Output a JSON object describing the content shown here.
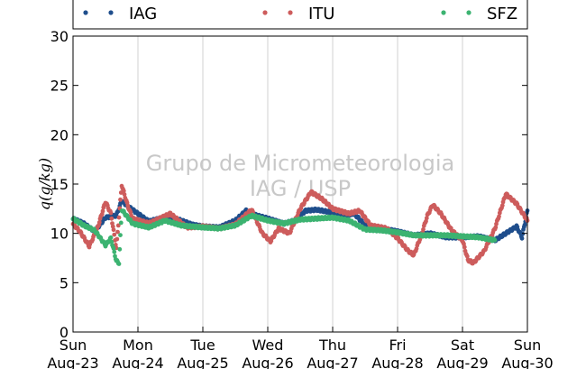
{
  "chart_data": {
    "type": "scatter",
    "title": "",
    "xlabel": "",
    "ylabel": "q(g/kg)",
    "ylim": [
      0,
      30
    ],
    "yticks": [
      0,
      5,
      10,
      15,
      20,
      25,
      30
    ],
    "xlim": [
      "2015-08-23 00:00",
      "2015-08-30 00:00"
    ],
    "xticks": [
      {
        "day": "Sun",
        "date": "Aug-23"
      },
      {
        "day": "Mon",
        "date": "Aug-24"
      },
      {
        "day": "Tue",
        "date": "Aug-25"
      },
      {
        "day": "Wed",
        "date": "Aug-26"
      },
      {
        "day": "Thu",
        "date": "Aug-27"
      },
      {
        "day": "Fri",
        "date": "Aug-28"
      },
      {
        "day": "Sat",
        "date": "Aug-29"
      },
      {
        "day": "Sun",
        "date": "Aug-30"
      }
    ],
    "grid": "vertical",
    "legend": "top",
    "watermark": [
      "Grupo de Micrometeorologia",
      "IAG / USP"
    ],
    "series": [
      {
        "name": "IAG",
        "color": "#1f4e8c",
        "points": [
          [
            "2015-08-23 00:00",
            11.5
          ],
          [
            "2015-08-23 04:00",
            11.0
          ],
          [
            "2015-08-23 08:00",
            10.2
          ],
          [
            "2015-08-23 12:00",
            11.6
          ],
          [
            "2015-08-23 16:00",
            11.8
          ],
          [
            "2015-08-23 18:00",
            13.3
          ],
          [
            "2015-08-23 20:00",
            12.8
          ],
          [
            "2015-08-24 00:00",
            12.0
          ],
          [
            "2015-08-24 04:00",
            11.2
          ],
          [
            "2015-08-24 08:00",
            11.5
          ],
          [
            "2015-08-24 12:00",
            11.6
          ],
          [
            "2015-08-24 16:00",
            11.3
          ],
          [
            "2015-08-24 20:00",
            10.9
          ],
          [
            "2015-08-25 00:00",
            10.7
          ],
          [
            "2015-08-25 06:00",
            10.6
          ],
          [
            "2015-08-25 12:00",
            11.3
          ],
          [
            "2015-08-25 16:00",
            12.3
          ],
          [
            "2015-08-25 20:00",
            11.8
          ],
          [
            "2015-08-26 00:00",
            11.5
          ],
          [
            "2015-08-26 06:00",
            11.0
          ],
          [
            "2015-08-26 10:00",
            11.3
          ],
          [
            "2015-08-26 14:00",
            12.3
          ],
          [
            "2015-08-26 18:00",
            12.4
          ],
          [
            "2015-08-26 22:00",
            12.2
          ],
          [
            "2015-08-27 04:00",
            11.8
          ],
          [
            "2015-08-27 08:00",
            12.0
          ],
          [
            "2015-08-27 12:00",
            10.8
          ],
          [
            "2015-08-27 18:00",
            10.5
          ],
          [
            "2015-08-28 00:00",
            10.2
          ],
          [
            "2015-08-28 06:00",
            9.8
          ],
          [
            "2015-08-28 12:00",
            10.0
          ],
          [
            "2015-08-28 18:00",
            9.6
          ],
          [
            "2015-08-29 00:00",
            9.6
          ],
          [
            "2015-08-29 06:00",
            9.7
          ],
          [
            "2015-08-29 12:00",
            9.3
          ],
          [
            "2015-08-29 16:00",
            10.0
          ],
          [
            "2015-08-29 20:00",
            10.7
          ],
          [
            "2015-08-29 22:00",
            9.6
          ],
          [
            "2015-08-30 00:00",
            12.3
          ]
        ]
      },
      {
        "name": "ITU",
        "color": "#cd5c5c",
        "points": [
          [
            "2015-08-23 00:00",
            11.0
          ],
          [
            "2015-08-23 03:00",
            10.0
          ],
          [
            "2015-08-23 06:00",
            8.7
          ],
          [
            "2015-08-23 09:00",
            10.5
          ],
          [
            "2015-08-23 12:00",
            13.2
          ],
          [
            "2015-08-23 14:00",
            12.0
          ],
          [
            "2015-08-23 16:00",
            8.5
          ],
          [
            "2015-08-23 18:00",
            14.9
          ],
          [
            "2015-08-23 20:00",
            13.0
          ],
          [
            "2015-08-23 22:00",
            11.5
          ],
          [
            "2015-08-24 04:00",
            11.0
          ],
          [
            "2015-08-24 12:00",
            12.0
          ],
          [
            "2015-08-24 18:00",
            10.6
          ],
          [
            "2015-08-25 00:00",
            10.7
          ],
          [
            "2015-08-25 06:00",
            10.5
          ],
          [
            "2015-08-25 12:00",
            10.9
          ],
          [
            "2015-08-25 18:00",
            12.4
          ],
          [
            "2015-08-25 22:00",
            10.0
          ],
          [
            "2015-08-26 01:00",
            9.2
          ],
          [
            "2015-08-26 04:00",
            10.5
          ],
          [
            "2015-08-26 08:00",
            10.0
          ],
          [
            "2015-08-26 12:00",
            12.5
          ],
          [
            "2015-08-26 16:00",
            14.2
          ],
          [
            "2015-08-26 20:00",
            13.5
          ],
          [
            "2015-08-27 00:00",
            12.5
          ],
          [
            "2015-08-27 06:00",
            12.0
          ],
          [
            "2015-08-27 10:00",
            12.3
          ],
          [
            "2015-08-27 14:00",
            10.8
          ],
          [
            "2015-08-27 20:00",
            10.5
          ],
          [
            "2015-08-28 00:00",
            9.5
          ],
          [
            "2015-08-28 04:00",
            8.2
          ],
          [
            "2015-08-28 06:00",
            7.8
          ],
          [
            "2015-08-28 09:00",
            10.0
          ],
          [
            "2015-08-28 11:00",
            11.8
          ],
          [
            "2015-08-28 13:00",
            12.9
          ],
          [
            "2015-08-28 16:00",
            12.0
          ],
          [
            "2015-08-28 20:00",
            10.3
          ],
          [
            "2015-08-29 00:00",
            9.3
          ],
          [
            "2015-08-29 02:00",
            7.3
          ],
          [
            "2015-08-29 04:00",
            7.0
          ],
          [
            "2015-08-29 08:00",
            8.2
          ],
          [
            "2015-08-29 12:00",
            10.5
          ],
          [
            "2015-08-29 16:00",
            14.0
          ],
          [
            "2015-08-29 20:00",
            13.0
          ],
          [
            "2015-08-30 00:00",
            11.3
          ]
        ]
      },
      {
        "name": "SFZ",
        "color": "#3cb371",
        "points": [
          [
            "2015-08-23 00:00",
            11.5
          ],
          [
            "2015-08-23 04:00",
            10.8
          ],
          [
            "2015-08-23 08:00",
            10.3
          ],
          [
            "2015-08-23 12:00",
            8.8
          ],
          [
            "2015-08-23 14:00",
            9.5
          ],
          [
            "2015-08-23 16:00",
            7.2
          ],
          [
            "2015-08-23 17:00",
            7.0
          ],
          [
            "2015-08-23 18:00",
            12.4
          ],
          [
            "2015-08-23 22:00",
            11.0
          ],
          [
            "2015-08-24 04:00",
            10.6
          ],
          [
            "2015-08-24 10:00",
            11.3
          ],
          [
            "2015-08-24 16:00",
            10.8
          ],
          [
            "2015-08-25 00:00",
            10.6
          ],
          [
            "2015-08-25 06:00",
            10.5
          ],
          [
            "2015-08-25 12:00",
            10.8
          ],
          [
            "2015-08-25 18:00",
            11.8
          ],
          [
            "2015-08-26 00:00",
            11.3
          ],
          [
            "2015-08-26 06:00",
            11.0
          ],
          [
            "2015-08-26 12:00",
            11.4
          ],
          [
            "2015-08-26 18:00",
            11.5
          ],
          [
            "2015-08-27 00:00",
            11.6
          ],
          [
            "2015-08-27 06:00",
            11.3
          ],
          [
            "2015-08-27 12:00",
            10.4
          ],
          [
            "2015-08-27 18:00",
            10.3
          ],
          [
            "2015-08-28 00:00",
            10.1
          ],
          [
            "2015-08-28 06:00",
            9.8
          ],
          [
            "2015-08-28 12:00",
            9.8
          ],
          [
            "2015-08-28 18:00",
            9.8
          ],
          [
            "2015-08-29 00:00",
            9.7
          ],
          [
            "2015-08-29 06:00",
            9.6
          ],
          [
            "2015-08-29 12:00",
            9.3
          ]
        ]
      }
    ]
  }
}
